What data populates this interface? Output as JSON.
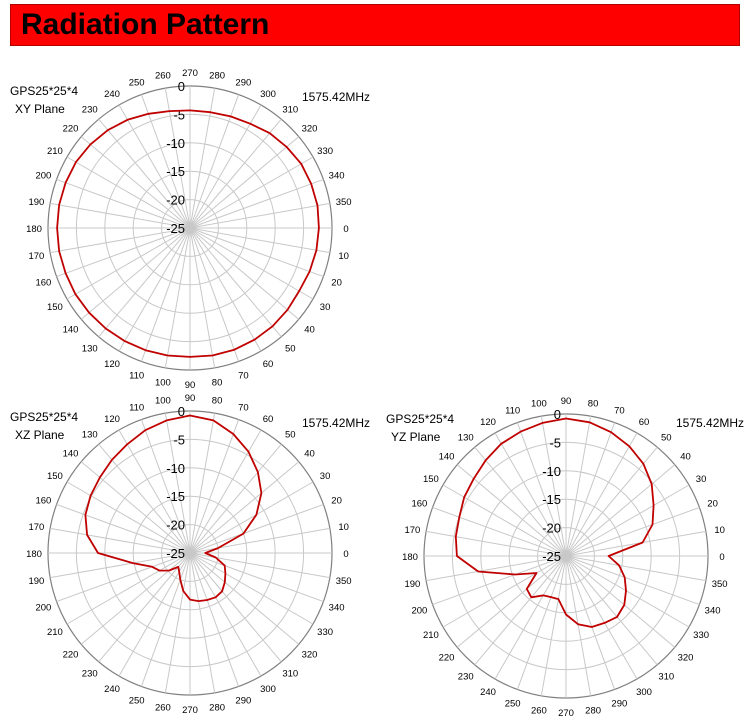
{
  "header": {
    "title": "Radiation Pattern"
  },
  "chart_data": [
    {
      "type": "polar-line",
      "model": "GPS25*25*4",
      "plane": "XY Plane",
      "frequency": "1575.42MHz",
      "radial_ticks": [
        "0",
        "-5",
        "-10",
        "-15",
        "-20",
        "-25"
      ],
      "rlim": [
        -25,
        0
      ],
      "angle_ticks": [
        270,
        280,
        290,
        300,
        310,
        320,
        330,
        340,
        350,
        0,
        10,
        20,
        30,
        40,
        50,
        60,
        70,
        80,
        90,
        100,
        110,
        120,
        130,
        140,
        150,
        160,
        170,
        180,
        190,
        200,
        210,
        220,
        230,
        240,
        250,
        260
      ],
      "grid": true,
      "series_color": "#c00000",
      "series": {
        "angles": [
          270,
          280,
          290,
          300,
          310,
          320,
          330,
          340,
          350,
          0,
          10,
          20,
          30,
          40,
          50,
          60,
          70,
          80,
          90,
          100,
          110,
          120,
          130,
          140,
          150,
          160,
          170,
          180,
          190,
          200,
          210,
          220,
          230,
          240,
          250,
          260
        ],
        "values": [
          -4.3,
          -4.3,
          -4.1,
          -3.8,
          -3.2,
          -2.8,
          -2.4,
          -2.3,
          -2.2,
          -2.3,
          -2.4,
          -2.6,
          -2.8,
          -2.6,
          -2.4,
          -2.3,
          -2.2,
          -2.2,
          -2.3,
          -2.2,
          -2.1,
          -2.0,
          -1.9,
          -1.8,
          -1.7,
          -1.7,
          -1.6,
          -1.6,
          -1.6,
          -1.7,
          -1.8,
          -2.1,
          -2.5,
          -3.0,
          -3.6,
          -4.1
        ]
      }
    },
    {
      "type": "polar-line",
      "model": "GPS25*25*4",
      "plane": "XZ Plane",
      "frequency": "1575.42MHz",
      "radial_ticks": [
        "0",
        "-5",
        "-10",
        "-15",
        "-20",
        "-25"
      ],
      "rlim": [
        -25,
        0
      ],
      "angle_ticks": [
        90,
        80,
        70,
        60,
        50,
        40,
        30,
        20,
        10,
        0,
        350,
        340,
        330,
        320,
        310,
        300,
        290,
        280,
        270,
        260,
        250,
        240,
        230,
        220,
        210,
        200,
        190,
        180,
        170,
        160,
        150,
        140,
        130,
        120,
        110,
        100
      ],
      "grid": true,
      "series_color": "#c00000",
      "series": {
        "angles": [
          90,
          80,
          70,
          60,
          50,
          40,
          30,
          20,
          10,
          0,
          350,
          340,
          330,
          320,
          310,
          300,
          290,
          280,
          270,
          260,
          250,
          240,
          230,
          220,
          210,
          200,
          190,
          180,
          170,
          160,
          150,
          140,
          130,
          120,
          110,
          100
        ],
        "values": [
          -0.8,
          -1.3,
          -2.7,
          -4.4,
          -6.4,
          -8.6,
          -11.5,
          -15.0,
          -20.0,
          -22.3,
          -20.4,
          -18.5,
          -17.8,
          -17.0,
          -16.2,
          -16.0,
          -16.2,
          -16.4,
          -16.8,
          -18.2,
          -20.0,
          -21.2,
          -21.8,
          -20.2,
          -18.8,
          -17.9,
          -14.8,
          -8.8,
          -6.6,
          -5.4,
          -4.8,
          -4.3,
          -3.6,
          -2.9,
          -2.0,
          -1.3
        ]
      }
    },
    {
      "type": "polar-line",
      "model": "GPS25*25*4",
      "plane": "YZ Plane",
      "frequency": "1575.42MHz",
      "radial_ticks": [
        "0",
        "-5",
        "-10",
        "-15",
        "-20",
        "-25"
      ],
      "rlim": [
        -25,
        0
      ],
      "angle_ticks": [
        90,
        80,
        70,
        60,
        50,
        40,
        30,
        20,
        10,
        0,
        350,
        340,
        330,
        320,
        310,
        300,
        290,
        280,
        270,
        260,
        250,
        240,
        230,
        220,
        210,
        200,
        190,
        180,
        170,
        160,
        150,
        140,
        130,
        120,
        110,
        100
      ],
      "grid": true,
      "series_color": "#c00000",
      "series": {
        "angles": [
          90,
          80,
          70,
          60,
          50,
          40,
          30,
          20,
          10,
          0,
          350,
          340,
          330,
          320,
          310,
          300,
          290,
          280,
          270,
          260,
          250,
          240,
          230,
          220,
          210,
          200,
          190,
          180,
          170,
          160,
          150,
          140,
          130,
          120,
          110,
          100
        ],
        "values": [
          -0.8,
          -1.1,
          -1.8,
          -2.7,
          -3.8,
          -5.3,
          -7.2,
          -8.8,
          -11.3,
          -17.5,
          -15.5,
          -14.0,
          -12.8,
          -11.6,
          -11.0,
          -11.4,
          -11.7,
          -12.8,
          -14.7,
          -17.3,
          -17.3,
          -17.0,
          -15.5,
          -16.0,
          -19.0,
          -15.5,
          -9.3,
          -5.8,
          -5.3,
          -5.0,
          -4.3,
          -3.8,
          -3.0,
          -2.2,
          -1.7,
          -1.2
        ]
      }
    }
  ]
}
